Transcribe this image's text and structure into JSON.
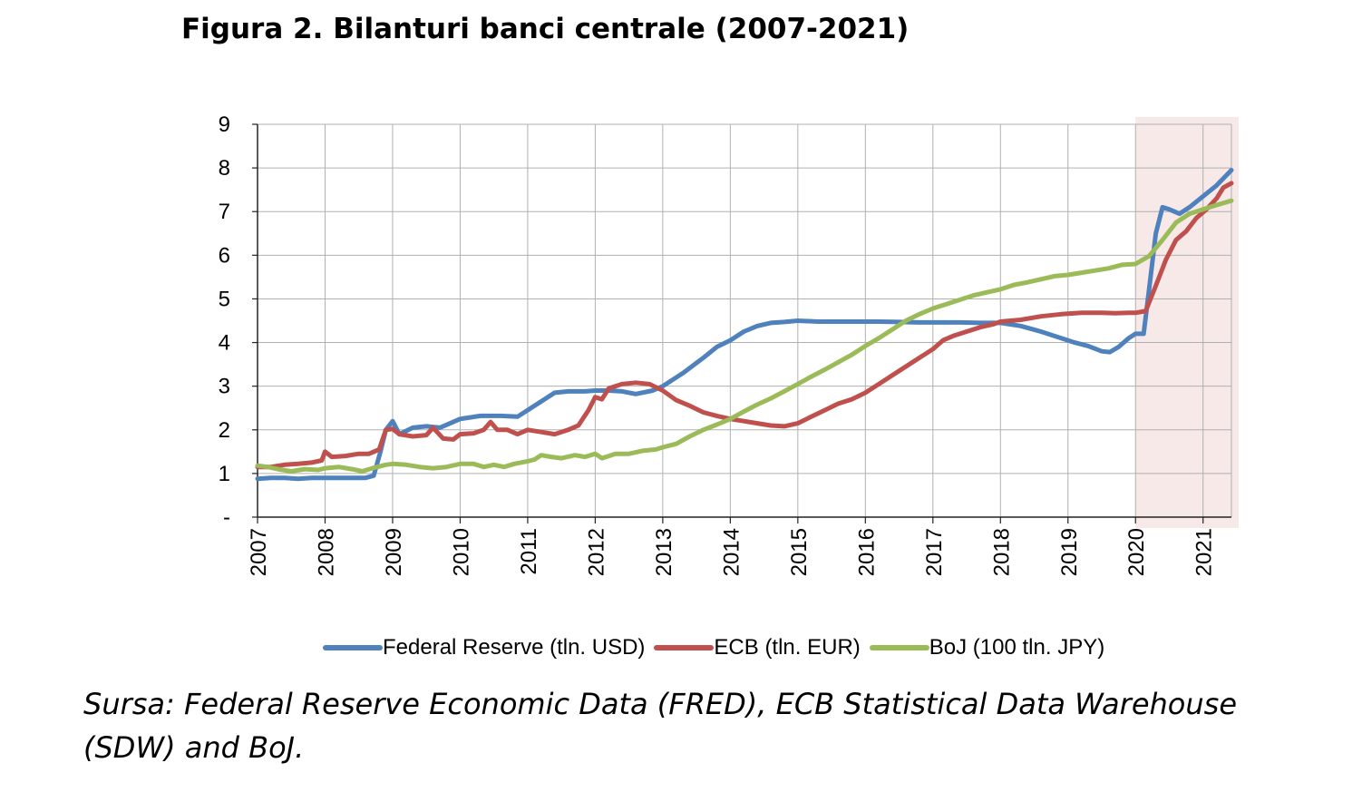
{
  "title": "Figura 2. Bilanturi banci centrale (2007-2021)",
  "source_text": "Sursa:  Federal Reserve Economic Data (FRED), ECB Statistical Data Warehouse (SDW) and BoJ.",
  "chart_data": {
    "type": "line",
    "title": "Figura 2. Bilanturi banci centrale (2007-2021)",
    "x_tick_labels": [
      "2007",
      "2008",
      "2009",
      "2010",
      "2011",
      "2012",
      "2013",
      "2014",
      "2015",
      "2016",
      "2017",
      "2018",
      "2019",
      "2020",
      "2021"
    ],
    "y_tick_labels": [
      "-",
      "1",
      "2",
      "3",
      "4",
      "5",
      "6",
      "7",
      "8",
      "9"
    ],
    "xlim": [
      2007.0,
      2021.42
    ],
    "ylim": [
      0,
      9
    ],
    "grid": true,
    "legend_position": "bottom",
    "shaded_region": {
      "from": 2020.0,
      "to": 2021.42,
      "color": "#f6e9e8"
    },
    "series": [
      {
        "name": "Federal Reserve (tln. USD)",
        "color": "#4f81bd",
        "points": [
          [
            2007.0,
            0.88
          ],
          [
            2007.2,
            0.9
          ],
          [
            2007.4,
            0.9
          ],
          [
            2007.6,
            0.88
          ],
          [
            2007.8,
            0.9
          ],
          [
            2008.0,
            0.9
          ],
          [
            2008.3,
            0.9
          ],
          [
            2008.6,
            0.9
          ],
          [
            2008.72,
            0.95
          ],
          [
            2008.82,
            1.5
          ],
          [
            2008.9,
            2.0
          ],
          [
            2009.0,
            2.2
          ],
          [
            2009.1,
            1.9
          ],
          [
            2009.3,
            2.05
          ],
          [
            2009.5,
            2.08
          ],
          [
            2009.7,
            2.05
          ],
          [
            2010.0,
            2.25
          ],
          [
            2010.3,
            2.32
          ],
          [
            2010.6,
            2.32
          ],
          [
            2010.85,
            2.3
          ],
          [
            2011.0,
            2.45
          ],
          [
            2011.2,
            2.65
          ],
          [
            2011.4,
            2.85
          ],
          [
            2011.6,
            2.88
          ],
          [
            2011.85,
            2.88
          ],
          [
            2012.0,
            2.9
          ],
          [
            2012.2,
            2.9
          ],
          [
            2012.4,
            2.88
          ],
          [
            2012.6,
            2.82
          ],
          [
            2012.85,
            2.9
          ],
          [
            2013.0,
            3.0
          ],
          [
            2013.3,
            3.3
          ],
          [
            2013.6,
            3.65
          ],
          [
            2013.8,
            3.9
          ],
          [
            2014.0,
            4.05
          ],
          [
            2014.2,
            4.25
          ],
          [
            2014.4,
            4.38
          ],
          [
            2014.6,
            4.45
          ],
          [
            2014.8,
            4.47
          ],
          [
            2015.0,
            4.5
          ],
          [
            2015.3,
            4.48
          ],
          [
            2015.6,
            4.48
          ],
          [
            2015.9,
            4.48
          ],
          [
            2016.2,
            4.48
          ],
          [
            2016.5,
            4.47
          ],
          [
            2016.8,
            4.46
          ],
          [
            2017.0,
            4.46
          ],
          [
            2017.4,
            4.46
          ],
          [
            2017.7,
            4.45
          ],
          [
            2018.0,
            4.45
          ],
          [
            2018.3,
            4.38
          ],
          [
            2018.6,
            4.25
          ],
          [
            2018.9,
            4.1
          ],
          [
            2019.1,
            4.0
          ],
          [
            2019.3,
            3.92
          ],
          [
            2019.5,
            3.8
          ],
          [
            2019.62,
            3.78
          ],
          [
            2019.75,
            3.9
          ],
          [
            2019.9,
            4.1
          ],
          [
            2020.0,
            4.2
          ],
          [
            2020.12,
            4.2
          ],
          [
            2020.2,
            5.2
          ],
          [
            2020.3,
            6.5
          ],
          [
            2020.4,
            7.1
          ],
          [
            2020.5,
            7.05
          ],
          [
            2020.65,
            6.95
          ],
          [
            2020.8,
            7.1
          ],
          [
            2021.0,
            7.35
          ],
          [
            2021.2,
            7.6
          ],
          [
            2021.42,
            7.95
          ]
        ]
      },
      {
        "name": "ECB (tln. EUR)",
        "color": "#c0504d",
        "points": [
          [
            2007.0,
            1.15
          ],
          [
            2007.2,
            1.15
          ],
          [
            2007.4,
            1.2
          ],
          [
            2007.6,
            1.22
          ],
          [
            2007.8,
            1.25
          ],
          [
            2007.95,
            1.3
          ],
          [
            2008.0,
            1.5
          ],
          [
            2008.1,
            1.38
          ],
          [
            2008.3,
            1.4
          ],
          [
            2008.5,
            1.45
          ],
          [
            2008.65,
            1.45
          ],
          [
            2008.8,
            1.55
          ],
          [
            2008.9,
            2.0
          ],
          [
            2009.0,
            2.02
          ],
          [
            2009.1,
            1.9
          ],
          [
            2009.3,
            1.85
          ],
          [
            2009.5,
            1.88
          ],
          [
            2009.6,
            2.05
          ],
          [
            2009.75,
            1.8
          ],
          [
            2009.9,
            1.78
          ],
          [
            2010.0,
            1.9
          ],
          [
            2010.2,
            1.92
          ],
          [
            2010.35,
            2.0
          ],
          [
            2010.45,
            2.18
          ],
          [
            2010.55,
            2.0
          ],
          [
            2010.7,
            2.0
          ],
          [
            2010.85,
            1.9
          ],
          [
            2011.0,
            2.0
          ],
          [
            2011.2,
            1.95
          ],
          [
            2011.4,
            1.9
          ],
          [
            2011.6,
            2.0
          ],
          [
            2011.75,
            2.1
          ],
          [
            2011.9,
            2.45
          ],
          [
            2012.0,
            2.75
          ],
          [
            2012.1,
            2.7
          ],
          [
            2012.2,
            2.95
          ],
          [
            2012.4,
            3.05
          ],
          [
            2012.6,
            3.08
          ],
          [
            2012.8,
            3.05
          ],
          [
            2013.0,
            2.9
          ],
          [
            2013.2,
            2.68
          ],
          [
            2013.4,
            2.55
          ],
          [
            2013.6,
            2.4
          ],
          [
            2013.8,
            2.32
          ],
          [
            2014.0,
            2.25
          ],
          [
            2014.2,
            2.2
          ],
          [
            2014.4,
            2.15
          ],
          [
            2014.6,
            2.1
          ],
          [
            2014.8,
            2.08
          ],
          [
            2015.0,
            2.15
          ],
          [
            2015.2,
            2.3
          ],
          [
            2015.4,
            2.45
          ],
          [
            2015.6,
            2.6
          ],
          [
            2015.8,
            2.7
          ],
          [
            2016.0,
            2.85
          ],
          [
            2016.2,
            3.05
          ],
          [
            2016.4,
            3.25
          ],
          [
            2016.6,
            3.45
          ],
          [
            2016.8,
            3.65
          ],
          [
            2017.0,
            3.85
          ],
          [
            2017.15,
            4.05
          ],
          [
            2017.3,
            4.15
          ],
          [
            2017.5,
            4.25
          ],
          [
            2017.7,
            4.35
          ],
          [
            2017.9,
            4.42
          ],
          [
            2018.0,
            4.48
          ],
          [
            2018.3,
            4.52
          ],
          [
            2018.6,
            4.6
          ],
          [
            2018.9,
            4.65
          ],
          [
            2019.2,
            4.68
          ],
          [
            2019.5,
            4.68
          ],
          [
            2019.7,
            4.67
          ],
          [
            2019.9,
            4.68
          ],
          [
            2020.0,
            4.68
          ],
          [
            2020.15,
            4.72
          ],
          [
            2020.3,
            5.3
          ],
          [
            2020.45,
            5.9
          ],
          [
            2020.6,
            6.35
          ],
          [
            2020.75,
            6.55
          ],
          [
            2020.9,
            6.85
          ],
          [
            2021.05,
            7.05
          ],
          [
            2021.2,
            7.3
          ],
          [
            2021.3,
            7.55
          ],
          [
            2021.42,
            7.65
          ]
        ]
      },
      {
        "name": "BoJ (100 tln. JPY)",
        "color": "#9bbb59",
        "points": [
          [
            2007.0,
            1.18
          ],
          [
            2007.15,
            1.15
          ],
          [
            2007.3,
            1.1
          ],
          [
            2007.5,
            1.05
          ],
          [
            2007.7,
            1.1
          ],
          [
            2007.9,
            1.08
          ],
          [
            2008.0,
            1.12
          ],
          [
            2008.2,
            1.15
          ],
          [
            2008.4,
            1.1
          ],
          [
            2008.55,
            1.05
          ],
          [
            2008.7,
            1.12
          ],
          [
            2008.9,
            1.2
          ],
          [
            2009.0,
            1.22
          ],
          [
            2009.2,
            1.2
          ],
          [
            2009.4,
            1.15
          ],
          [
            2009.6,
            1.12
          ],
          [
            2009.8,
            1.15
          ],
          [
            2010.0,
            1.22
          ],
          [
            2010.2,
            1.22
          ],
          [
            2010.35,
            1.15
          ],
          [
            2010.5,
            1.2
          ],
          [
            2010.65,
            1.15
          ],
          [
            2010.8,
            1.22
          ],
          [
            2011.0,
            1.28
          ],
          [
            2011.1,
            1.32
          ],
          [
            2011.2,
            1.42
          ],
          [
            2011.35,
            1.38
          ],
          [
            2011.5,
            1.35
          ],
          [
            2011.7,
            1.42
          ],
          [
            2011.85,
            1.38
          ],
          [
            2012.0,
            1.45
          ],
          [
            2012.1,
            1.35
          ],
          [
            2012.3,
            1.45
          ],
          [
            2012.5,
            1.45
          ],
          [
            2012.7,
            1.52
          ],
          [
            2012.9,
            1.55
          ],
          [
            2013.0,
            1.6
          ],
          [
            2013.2,
            1.68
          ],
          [
            2013.4,
            1.85
          ],
          [
            2013.6,
            2.0
          ],
          [
            2013.8,
            2.12
          ],
          [
            2014.0,
            2.25
          ],
          [
            2014.2,
            2.42
          ],
          [
            2014.4,
            2.58
          ],
          [
            2014.6,
            2.72
          ],
          [
            2014.8,
            2.88
          ],
          [
            2015.0,
            3.05
          ],
          [
            2015.2,
            3.22
          ],
          [
            2015.4,
            3.38
          ],
          [
            2015.6,
            3.55
          ],
          [
            2015.8,
            3.72
          ],
          [
            2016.0,
            3.92
          ],
          [
            2016.2,
            4.1
          ],
          [
            2016.4,
            4.3
          ],
          [
            2016.6,
            4.5
          ],
          [
            2016.8,
            4.65
          ],
          [
            2017.0,
            4.78
          ],
          [
            2017.2,
            4.88
          ],
          [
            2017.4,
            4.98
          ],
          [
            2017.6,
            5.08
          ],
          [
            2017.8,
            5.15
          ],
          [
            2018.0,
            5.22
          ],
          [
            2018.2,
            5.32
          ],
          [
            2018.4,
            5.38
          ],
          [
            2018.6,
            5.45
          ],
          [
            2018.8,
            5.52
          ],
          [
            2019.0,
            5.55
          ],
          [
            2019.2,
            5.6
          ],
          [
            2019.4,
            5.65
          ],
          [
            2019.6,
            5.7
          ],
          [
            2019.8,
            5.78
          ],
          [
            2020.0,
            5.8
          ],
          [
            2020.2,
            5.98
          ],
          [
            2020.4,
            6.35
          ],
          [
            2020.6,
            6.75
          ],
          [
            2020.8,
            6.95
          ],
          [
            2021.0,
            7.05
          ],
          [
            2021.2,
            7.15
          ],
          [
            2021.42,
            7.25
          ]
        ]
      }
    ]
  }
}
